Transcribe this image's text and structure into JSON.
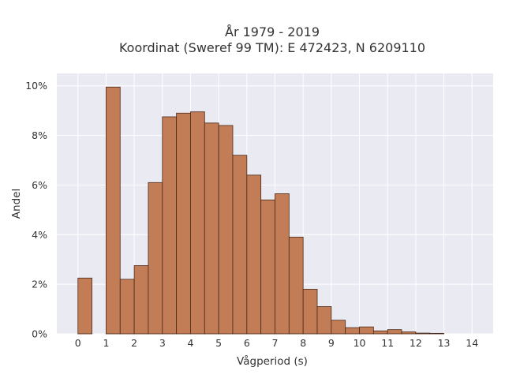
{
  "chart_data": {
    "type": "bar",
    "title": "År 1979 - 2019",
    "subtitle": "Koordinat (Sweref 99 TM): E 472423, N 6209110",
    "xlabel": "Vågperiod (s)",
    "ylabel": "Andel",
    "x_ticks": [
      "0",
      "1",
      "2",
      "3",
      "4",
      "5",
      "6",
      "7",
      "8",
      "9",
      "10",
      "11",
      "12",
      "13",
      "14"
    ],
    "y_ticks": [
      "0%",
      "2%",
      "4%",
      "6%",
      "8%",
      "10%"
    ],
    "xlim": [
      -0.75,
      14.75
    ],
    "ylim": [
      0,
      10.5
    ],
    "bin_width": 0.5,
    "bins": [
      {
        "x": 0.0,
        "value": 2.25
      },
      {
        "x": 1.0,
        "value": 9.95
      },
      {
        "x": 1.5,
        "value": 2.2
      },
      {
        "x": 2.0,
        "value": 2.75
      },
      {
        "x": 2.5,
        "value": 6.1
      },
      {
        "x": 3.0,
        "value": 8.75
      },
      {
        "x": 3.5,
        "value": 8.9
      },
      {
        "x": 4.0,
        "value": 8.95
      },
      {
        "x": 4.5,
        "value": 8.5
      },
      {
        "x": 5.0,
        "value": 8.4
      },
      {
        "x": 5.5,
        "value": 7.2
      },
      {
        "x": 6.0,
        "value": 6.4
      },
      {
        "x": 6.5,
        "value": 5.4
      },
      {
        "x": 7.0,
        "value": 5.65
      },
      {
        "x": 7.5,
        "value": 3.9
      },
      {
        "x": 8.0,
        "value": 1.8
      },
      {
        "x": 8.5,
        "value": 1.1
      },
      {
        "x": 9.0,
        "value": 0.55
      },
      {
        "x": 9.5,
        "value": 0.25
      },
      {
        "x": 10.0,
        "value": 0.28
      },
      {
        "x": 10.5,
        "value": 0.12
      },
      {
        "x": 11.0,
        "value": 0.17
      },
      {
        "x": 11.5,
        "value": 0.08
      },
      {
        "x": 12.0,
        "value": 0.03
      },
      {
        "x": 12.5,
        "value": 0.02
      }
    ],
    "grid": true,
    "colors": {
      "bar_fill": "#c27d56",
      "bar_edge": "#4a2a1a",
      "plot_background": "#eaeaf2",
      "grid": "#ffffff"
    }
  }
}
